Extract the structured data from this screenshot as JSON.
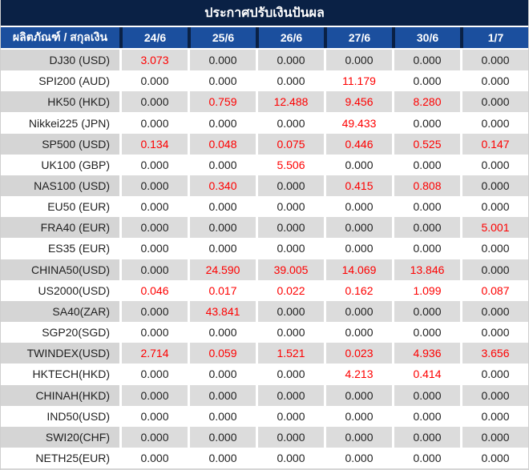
{
  "colors": {
    "title_bg": "#0A2145",
    "header_bg": "#1B4F9E",
    "row_alt_bg": "#DCDCDC",
    "row_name_alt_bg": "#D5D5D5",
    "value_zero": "#1F1F1F",
    "value_nonzero": "#FE0000",
    "header_text": "#FFFFFF"
  },
  "title": "ประกาศปรับเงินปันผล",
  "table": {
    "corner_label": "ผลิตภัณฑ์ / สกุลเงิน",
    "columns": [
      "24/6",
      "25/6",
      "26/6",
      "27/6",
      "30/6",
      "1/7"
    ],
    "rows": [
      {
        "name": "DJ30 (USD)",
        "values": [
          "3.073",
          "0.000",
          "0.000",
          "0.000",
          "0.000",
          "0.000"
        ]
      },
      {
        "name": "SPI200 (AUD)",
        "values": [
          "0.000",
          "0.000",
          "0.000",
          "11.179",
          "0.000",
          "0.000"
        ]
      },
      {
        "name": "HK50 (HKD)",
        "values": [
          "0.000",
          "0.759",
          "12.488",
          "9.456",
          "8.280",
          "0.000"
        ]
      },
      {
        "name": "Nikkei225 (JPN)",
        "values": [
          "0.000",
          "0.000",
          "0.000",
          "49.433",
          "0.000",
          "0.000"
        ]
      },
      {
        "name": "SP500 (USD)",
        "values": [
          "0.134",
          "0.048",
          "0.075",
          "0.446",
          "0.525",
          "0.147"
        ]
      },
      {
        "name": "UK100 (GBP)",
        "values": [
          "0.000",
          "0.000",
          "5.506",
          "0.000",
          "0.000",
          "0.000"
        ]
      },
      {
        "name": "NAS100 (USD)",
        "values": [
          "0.000",
          "0.340",
          "0.000",
          "0.415",
          "0.808",
          "0.000"
        ]
      },
      {
        "name": "EU50 (EUR)",
        "values": [
          "0.000",
          "0.000",
          "0.000",
          "0.000",
          "0.000",
          "0.000"
        ]
      },
      {
        "name": "FRA40 (EUR)",
        "values": [
          "0.000",
          "0.000",
          "0.000",
          "0.000",
          "0.000",
          "5.001"
        ]
      },
      {
        "name": "ES35 (EUR)",
        "values": [
          "0.000",
          "0.000",
          "0.000",
          "0.000",
          "0.000",
          "0.000"
        ]
      },
      {
        "name": "CHINA50(USD)",
        "values": [
          "0.000",
          "24.590",
          "39.005",
          "14.069",
          "13.846",
          "0.000"
        ]
      },
      {
        "name": "US2000(USD)",
        "values": [
          "0.046",
          "0.017",
          "0.022",
          "0.162",
          "1.099",
          "0.087"
        ]
      },
      {
        "name": "SA40(ZAR)",
        "values": [
          "0.000",
          "43.841",
          "0.000",
          "0.000",
          "0.000",
          "0.000"
        ]
      },
      {
        "name": "SGP20(SGD)",
        "values": [
          "0.000",
          "0.000",
          "0.000",
          "0.000",
          "0.000",
          "0.000"
        ]
      },
      {
        "name": "TWINDEX(USD)",
        "values": [
          "2.714",
          "0.059",
          "1.521",
          "0.023",
          "4.936",
          "3.656"
        ]
      },
      {
        "name": "HKTECH(HKD)",
        "values": [
          "0.000",
          "0.000",
          "0.000",
          "4.213",
          "0.414",
          "0.000"
        ]
      },
      {
        "name": "CHINAH(HKD)",
        "values": [
          "0.000",
          "0.000",
          "0.000",
          "0.000",
          "0.000",
          "0.000"
        ]
      },
      {
        "name": "IND50(USD)",
        "values": [
          "0.000",
          "0.000",
          "0.000",
          "0.000",
          "0.000",
          "0.000"
        ]
      },
      {
        "name": "SWI20(CHF)",
        "values": [
          "0.000",
          "0.000",
          "0.000",
          "0.000",
          "0.000",
          "0.000"
        ]
      },
      {
        "name": "NETH25(EUR)",
        "values": [
          "0.000",
          "0.000",
          "0.000",
          "0.000",
          "0.000",
          "0.000"
        ]
      }
    ]
  }
}
